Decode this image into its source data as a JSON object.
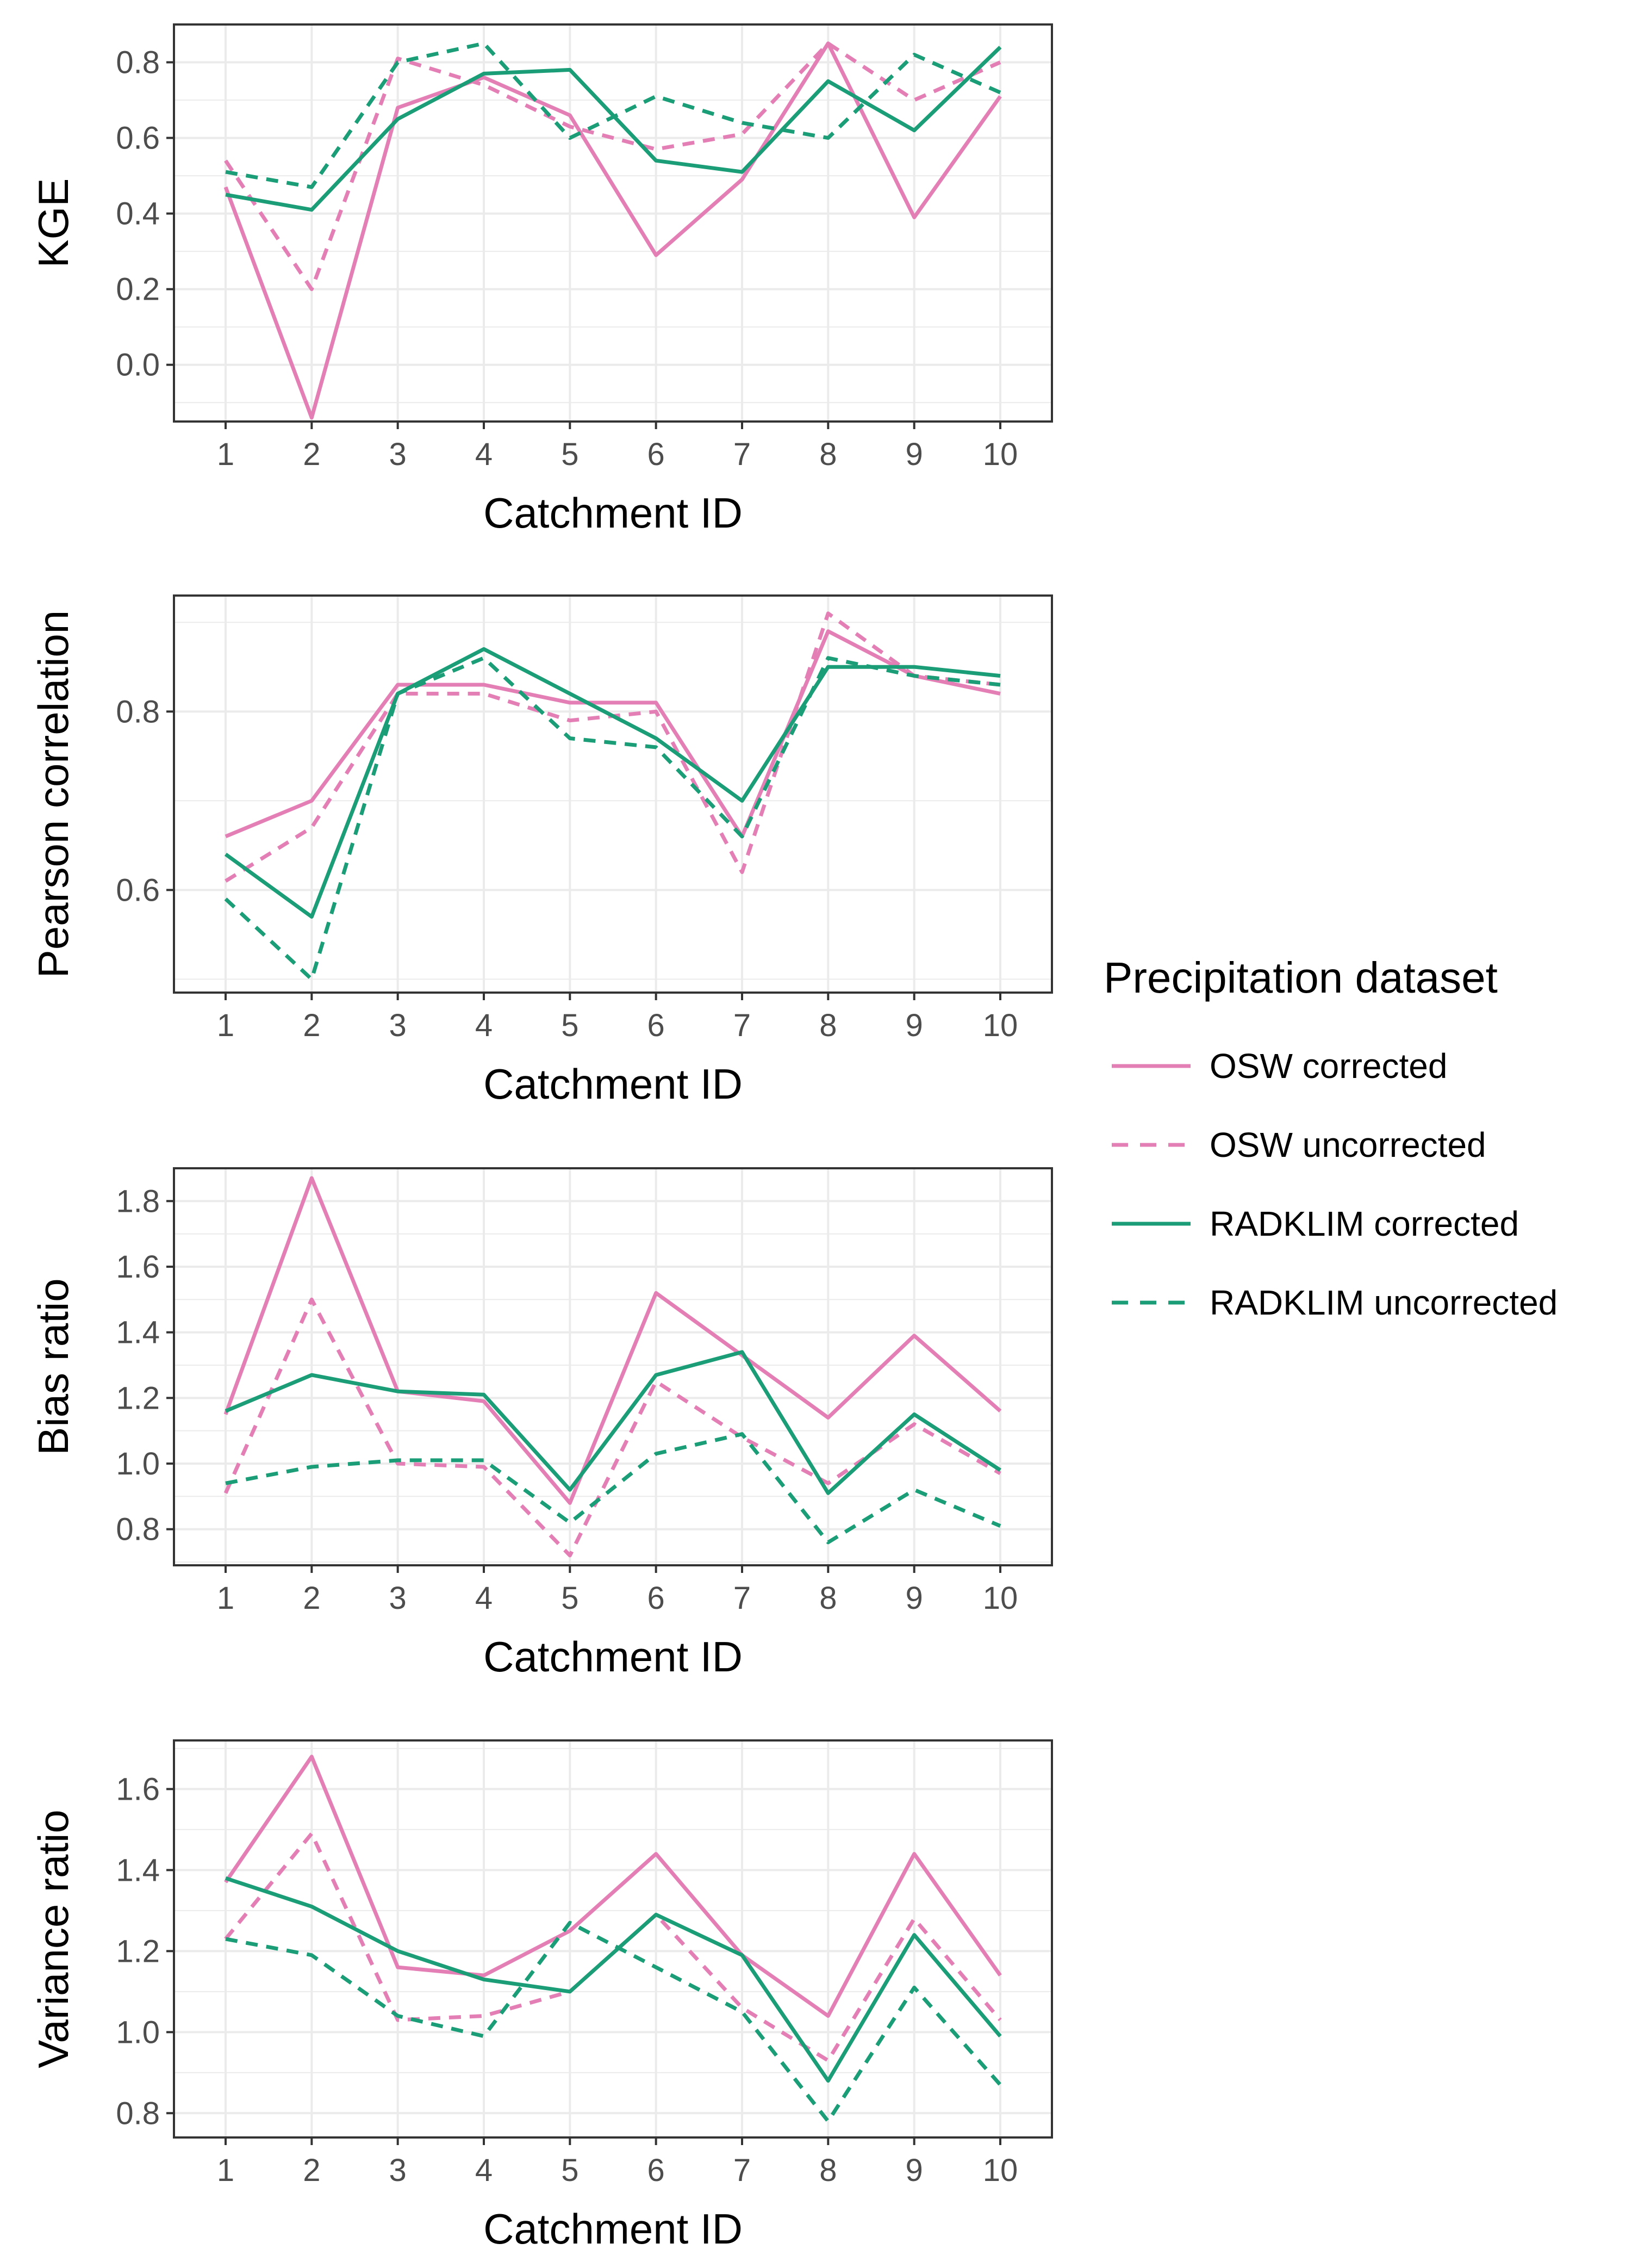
{
  "chart_data": [
    {
      "type": "line",
      "ylabel": "KGE",
      "xlabel": "Catchment ID",
      "x": [
        1,
        2,
        3,
        4,
        5,
        6,
        7,
        8,
        9,
        10
      ],
      "ylim": [
        -0.15,
        0.9
      ],
      "yticks": [
        0.0,
        0.2,
        0.4,
        0.6,
        0.8
      ],
      "ytick_labels": [
        "0.0",
        "0.2",
        "0.4",
        "0.6",
        "0.8"
      ],
      "series": [
        {
          "name": "OSW corrected",
          "values": [
            0.47,
            -0.14,
            0.68,
            0.76,
            0.66,
            0.29,
            0.49,
            0.85,
            0.39,
            0.71
          ]
        },
        {
          "name": "OSW uncorrected",
          "values": [
            0.54,
            0.2,
            0.81,
            0.74,
            0.63,
            0.57,
            0.61,
            0.85,
            0.7,
            0.8
          ]
        },
        {
          "name": "RADKLIM corrected",
          "values": [
            0.45,
            0.41,
            0.65,
            0.77,
            0.78,
            0.54,
            0.51,
            0.75,
            0.62,
            0.84
          ]
        },
        {
          "name": "RADKLIM uncorrected",
          "values": [
            0.51,
            0.47,
            0.8,
            0.85,
            0.6,
            0.71,
            0.64,
            0.6,
            0.82,
            0.72
          ]
        }
      ]
    },
    {
      "type": "line",
      "ylabel": "Pearson correlation",
      "xlabel": "Catchment ID",
      "x": [
        1,
        2,
        3,
        4,
        5,
        6,
        7,
        8,
        9,
        10
      ],
      "ylim": [
        0.485,
        0.93
      ],
      "yticks": [
        0.6,
        0.8
      ],
      "ytick_labels": [
        "0.6",
        "0.8"
      ],
      "series": [
        {
          "name": "OSW corrected",
          "values": [
            0.66,
            0.7,
            0.83,
            0.83,
            0.81,
            0.81,
            0.66,
            0.89,
            0.84,
            0.82
          ]
        },
        {
          "name": "OSW uncorrected",
          "values": [
            0.61,
            0.67,
            0.82,
            0.82,
            0.79,
            0.8,
            0.62,
            0.91,
            0.84,
            0.83
          ]
        },
        {
          "name": "RADKLIM corrected",
          "values": [
            0.64,
            0.57,
            0.82,
            0.87,
            0.82,
            0.77,
            0.7,
            0.85,
            0.85,
            0.84
          ]
        },
        {
          "name": "RADKLIM uncorrected",
          "values": [
            0.59,
            0.5,
            0.82,
            0.86,
            0.77,
            0.76,
            0.66,
            0.86,
            0.84,
            0.83
          ]
        }
      ]
    },
    {
      "type": "line",
      "ylabel": "Bias ratio",
      "xlabel": "Catchment ID",
      "x": [
        1,
        2,
        3,
        4,
        5,
        6,
        7,
        8,
        9,
        10
      ],
      "ylim": [
        0.69,
        1.9
      ],
      "yticks": [
        0.8,
        1.0,
        1.2,
        1.4,
        1.6,
        1.8
      ],
      "ytick_labels": [
        "0.8",
        "1.0",
        "1.2",
        "1.4",
        "1.6",
        "1.8"
      ],
      "series": [
        {
          "name": "OSW corrected",
          "values": [
            1.15,
            1.87,
            1.22,
            1.19,
            0.88,
            1.52,
            1.33,
            1.14,
            1.39,
            1.16
          ]
        },
        {
          "name": "OSW uncorrected",
          "values": [
            0.91,
            1.5,
            1.0,
            0.99,
            0.72,
            1.25,
            1.08,
            0.94,
            1.12,
            0.97
          ]
        },
        {
          "name": "RADKLIM corrected",
          "values": [
            1.16,
            1.27,
            1.22,
            1.21,
            0.92,
            1.27,
            1.34,
            0.91,
            1.15,
            0.98
          ]
        },
        {
          "name": "RADKLIM uncorrected",
          "values": [
            0.94,
            0.99,
            1.01,
            1.01,
            0.82,
            1.03,
            1.09,
            0.76,
            0.92,
            0.81
          ]
        }
      ]
    },
    {
      "type": "line",
      "ylabel": "Variance ratio",
      "xlabel": "Catchment ID",
      "x": [
        1,
        2,
        3,
        4,
        5,
        6,
        7,
        8,
        9,
        10
      ],
      "ylim": [
        0.74,
        1.72
      ],
      "yticks": [
        0.8,
        1.0,
        1.2,
        1.4,
        1.6
      ],
      "ytick_labels": [
        "0.8",
        "1.0",
        "1.2",
        "1.4",
        "1.6"
      ],
      "series": [
        {
          "name": "OSW corrected",
          "values": [
            1.37,
            1.68,
            1.16,
            1.14,
            1.25,
            1.44,
            1.19,
            1.04,
            1.44,
            1.14
          ]
        },
        {
          "name": "OSW uncorrected",
          "values": [
            1.23,
            1.49,
            1.03,
            1.04,
            1.1,
            1.29,
            1.06,
            0.93,
            1.28,
            1.03
          ]
        },
        {
          "name": "RADKLIM corrected",
          "values": [
            1.38,
            1.31,
            1.2,
            1.13,
            1.1,
            1.29,
            1.19,
            0.88,
            1.24,
            0.99
          ]
        },
        {
          "name": "RADKLIM uncorrected",
          "values": [
            1.23,
            1.19,
            1.04,
            0.99,
            1.27,
            1.16,
            1.05,
            0.78,
            1.11,
            0.87
          ]
        }
      ]
    }
  ],
  "xtick_labels": [
    "1",
    "2",
    "3",
    "4",
    "5",
    "6",
    "7",
    "8",
    "9",
    "10"
  ],
  "legend": {
    "title": "Precipitation dataset",
    "placement": "right",
    "items": [
      {
        "label": "OSW corrected",
        "color": "#e37fb5",
        "dash": "solid"
      },
      {
        "label": "OSW uncorrected",
        "color": "#e37fb5",
        "dash": "dashed"
      },
      {
        "label": "RADKLIM corrected",
        "color": "#1b9e77",
        "dash": "solid"
      },
      {
        "label": "RADKLIM uncorrected",
        "color": "#1b9e77",
        "dash": "dashed"
      }
    ]
  },
  "colors": {
    "osw": "#e37fb5",
    "radklim": "#1b9e77",
    "grid": "#ebebeb",
    "panel_border": "#333333"
  }
}
